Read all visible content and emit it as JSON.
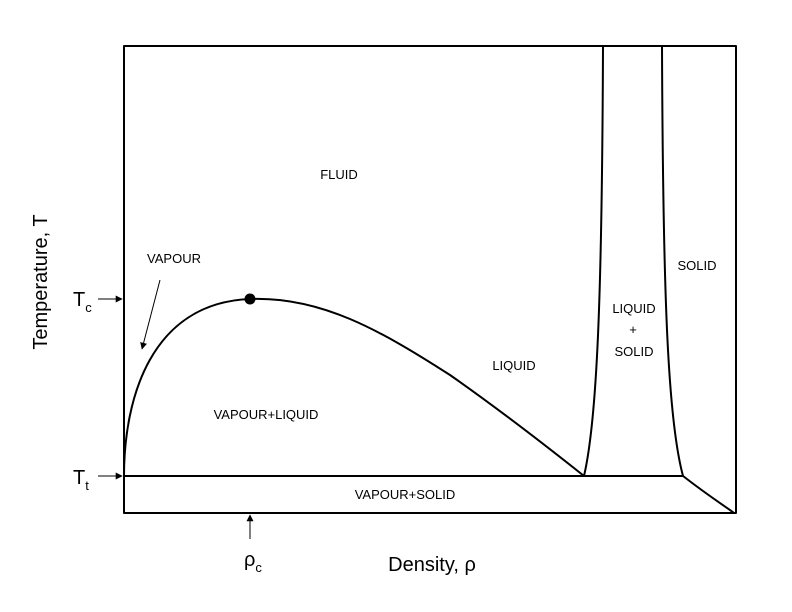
{
  "axes": {
    "x_label": "Density, ρ",
    "y_label": "Temperature, T"
  },
  "ticks": {
    "tc": {
      "main": "T",
      "sub": "c"
    },
    "tt": {
      "main": "T",
      "sub": "t"
    },
    "rho_c": {
      "main": "ρ",
      "sub": "c"
    }
  },
  "regions": {
    "fluid": "FLUID",
    "vapour": "VAPOUR",
    "vapour_liquid": "VAPOUR+LIQUID",
    "liquid": "LIQUID",
    "liquid_solid_top": "LIQUID",
    "liquid_solid_plus": "+",
    "liquid_solid_bottom": "SOLID",
    "solid": "SOLID",
    "vapour_solid": "VAPOUR+SOLID"
  },
  "colors": {
    "line": "#000000",
    "background": "#ffffff"
  }
}
